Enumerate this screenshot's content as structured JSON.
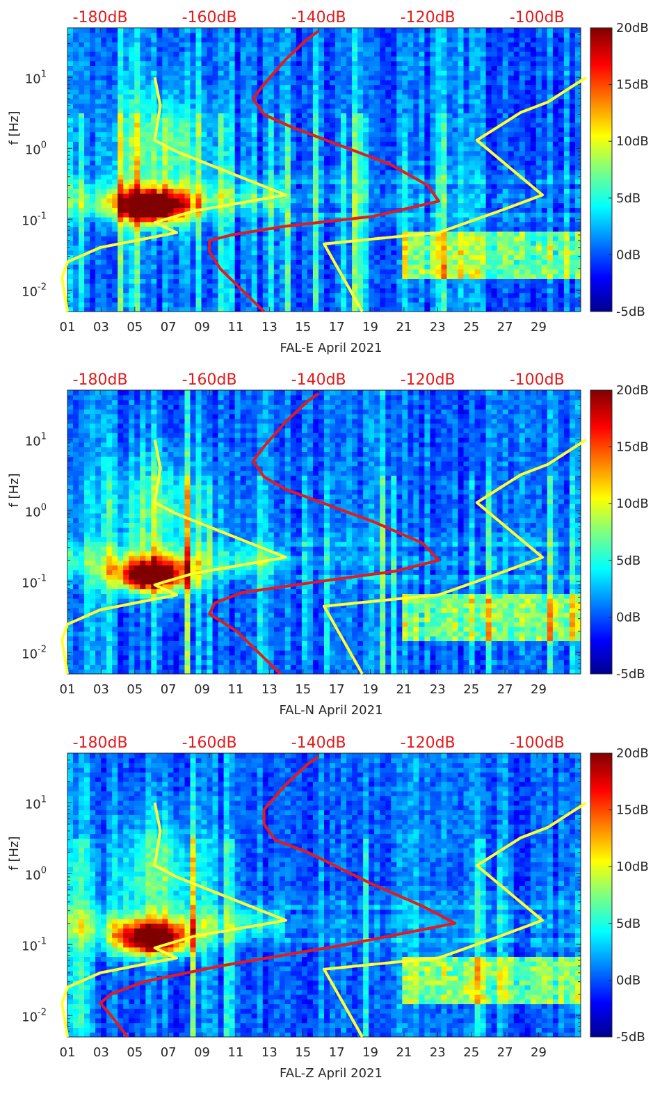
{
  "chart_data": [
    {
      "type": "heatmap",
      "title": "",
      "xlabel": "FAL-E April 2021",
      "ylabel": "f [Hz]",
      "x_ticks": [
        "01",
        "03",
        "05",
        "07",
        "09",
        "11",
        "13",
        "15",
        "17",
        "19",
        "21",
        "23",
        "25",
        "27",
        "29"
      ],
      "x_day_range": [
        1,
        31.5
      ],
      "y_scale": "log",
      "ylim": [
        0.005,
        50
      ],
      "y_ticks": [
        {
          "value": 10,
          "base": "10",
          "exp": "1"
        },
        {
          "value": 1,
          "base": "10",
          "exp": "0"
        },
        {
          "value": 0.1,
          "base": "10",
          "exp": "-1"
        },
        {
          "value": 0.01,
          "base": "10",
          "exp": "-2"
        }
      ],
      "top_axis_ticks": [
        "-180dB",
        "-160dB",
        "-140dB",
        "-120dB",
        "-100dB"
      ],
      "top_axis_range_db": [
        -186,
        -92
      ],
      "colorbar": {
        "ticks": [
          "20dB",
          "15dB",
          "10dB",
          "5dB",
          "0dB",
          "-5dB"
        ],
        "range_db": [
          -5,
          20
        ],
        "colormap": "jet"
      },
      "hot_spot": {
        "day_center": 6,
        "f_center_hz": 0.15,
        "peak_db": 20
      },
      "series": [
        {
          "color": "#ffff33",
          "description": "low noise model",
          "points_db_hz": [
            [
              -186,
              0.005
            ],
            [
              -187,
              0.015
            ],
            [
              -186,
              0.025
            ],
            [
              -180,
              0.04
            ],
            [
              -166,
              0.065
            ],
            [
              -170,
              0.09
            ],
            [
              -163,
              0.13
            ],
            [
              -146,
              0.22
            ],
            [
              -166,
              0.9
            ],
            [
              -170,
              1.3
            ],
            [
              -169,
              4
            ],
            [
              -170,
              10
            ]
          ]
        },
        {
          "color": "#ffff33",
          "description": "high noise model",
          "points_db_hz": [
            [
              -132,
              0.005
            ],
            [
              -139,
              0.045
            ],
            [
              -118,
              0.065
            ],
            [
              -107,
              0.13
            ],
            [
              -99,
              0.22
            ],
            [
              -111,
              1.3
            ],
            [
              -103,
              3.2
            ],
            [
              -98,
              4.5
            ],
            [
              -91,
              10
            ]
          ]
        },
        {
          "color": "#e41a1c",
          "description": "station noise level",
          "points_db_hz": [
            [
              -150,
              0.005
            ],
            [
              -158,
              0.02
            ],
            [
              -160,
              0.035
            ],
            [
              -160,
              0.05
            ],
            [
              -156,
              0.06
            ],
            [
              -146,
              0.08
            ],
            [
              -130,
              0.11
            ],
            [
              -118,
              0.18
            ],
            [
              -120,
              0.3
            ],
            [
              -127,
              0.6
            ],
            [
              -145,
              2
            ],
            [
              -150,
              3
            ],
            [
              -152,
              5
            ],
            [
              -150,
              8
            ],
            [
              -148,
              12
            ],
            [
              -146,
              18
            ],
            [
              -144,
              25
            ],
            [
              -142,
              35
            ],
            [
              -140,
              45
            ]
          ]
        }
      ]
    },
    {
      "type": "heatmap",
      "title": "",
      "xlabel": "FAL-N April 2021",
      "ylabel": "f [Hz]",
      "x_ticks": [
        "01",
        "03",
        "05",
        "07",
        "09",
        "11",
        "13",
        "15",
        "17",
        "19",
        "21",
        "23",
        "25",
        "27",
        "29"
      ],
      "x_day_range": [
        1,
        31.5
      ],
      "y_scale": "log",
      "ylim": [
        0.005,
        50
      ],
      "y_ticks": [
        {
          "value": 10,
          "base": "10",
          "exp": "1"
        },
        {
          "value": 1,
          "base": "10",
          "exp": "0"
        },
        {
          "value": 0.1,
          "base": "10",
          "exp": "-1"
        },
        {
          "value": 0.01,
          "base": "10",
          "exp": "-2"
        }
      ],
      "top_axis_ticks": [
        "-180dB",
        "-160dB",
        "-140dB",
        "-120dB",
        "-100dB"
      ],
      "top_axis_range_db": [
        -186,
        -92
      ],
      "colorbar": {
        "ticks": [
          "20dB",
          "15dB",
          "10dB",
          "5dB",
          "0dB",
          "-5dB"
        ],
        "range_db": [
          -5,
          20
        ],
        "colormap": "jet"
      },
      "hot_spot": {
        "day_center": 6,
        "f_center_hz": 0.12,
        "peak_db": 20
      },
      "series": [
        {
          "color": "#ffff33",
          "description": "low noise model",
          "points_db_hz": [
            [
              -186,
              0.005
            ],
            [
              -187,
              0.015
            ],
            [
              -186,
              0.025
            ],
            [
              -180,
              0.04
            ],
            [
              -166,
              0.065
            ],
            [
              -170,
              0.09
            ],
            [
              -163,
              0.13
            ],
            [
              -146,
              0.22
            ],
            [
              -166,
              0.9
            ],
            [
              -170,
              1.3
            ],
            [
              -169,
              4
            ],
            [
              -170,
              10
            ]
          ]
        },
        {
          "color": "#ffff33",
          "description": "high noise model",
          "points_db_hz": [
            [
              -132,
              0.005
            ],
            [
              -139,
              0.045
            ],
            [
              -118,
              0.065
            ],
            [
              -107,
              0.13
            ],
            [
              -99,
              0.22
            ],
            [
              -111,
              1.3
            ],
            [
              -103,
              3.2
            ],
            [
              -98,
              4.5
            ],
            [
              -91,
              10
            ]
          ]
        },
        {
          "color": "#e41a1c",
          "description": "station noise level",
          "points_db_hz": [
            [
              -147,
              0.005
            ],
            [
              -155,
              0.02
            ],
            [
              -160,
              0.035
            ],
            [
              -159,
              0.05
            ],
            [
              -154,
              0.07
            ],
            [
              -140,
              0.1
            ],
            [
              -126,
              0.14
            ],
            [
              -118,
              0.2
            ],
            [
              -121,
              0.35
            ],
            [
              -130,
              0.7
            ],
            [
              -146,
              2
            ],
            [
              -150,
              3
            ],
            [
              -152,
              5
            ],
            [
              -150,
              8
            ],
            [
              -148,
              12
            ],
            [
              -146,
              18
            ],
            [
              -144,
              25
            ],
            [
              -142,
              35
            ],
            [
              -140,
              45
            ]
          ]
        }
      ]
    },
    {
      "type": "heatmap",
      "title": "",
      "xlabel": "FAL-Z April 2021",
      "ylabel": "f [Hz]",
      "x_ticks": [
        "01",
        "03",
        "05",
        "07",
        "09",
        "11",
        "13",
        "15",
        "17",
        "19",
        "21",
        "23",
        "25",
        "27",
        "29"
      ],
      "x_day_range": [
        1,
        31.5
      ],
      "y_scale": "log",
      "ylim": [
        0.005,
        50
      ],
      "y_ticks": [
        {
          "value": 10,
          "base": "10",
          "exp": "1"
        },
        {
          "value": 1,
          "base": "10",
          "exp": "0"
        },
        {
          "value": 0.1,
          "base": "10",
          "exp": "-1"
        },
        {
          "value": 0.01,
          "base": "10",
          "exp": "-2"
        }
      ],
      "top_axis_ticks": [
        "-180dB",
        "-160dB",
        "-140dB",
        "-120dB",
        "-100dB"
      ],
      "top_axis_range_db": [
        -186,
        -92
      ],
      "colorbar": {
        "ticks": [
          "20dB",
          "15dB",
          "10dB",
          "5dB",
          "0dB",
          "-5dB"
        ],
        "range_db": [
          -5,
          20
        ],
        "colormap": "jet"
      },
      "hot_spot": {
        "day_center": 6,
        "f_center_hz": 0.12,
        "peak_db": 20
      },
      "series": [
        {
          "color": "#ffff33",
          "description": "low noise model",
          "points_db_hz": [
            [
              -186,
              0.005
            ],
            [
              -187,
              0.015
            ],
            [
              -186,
              0.025
            ],
            [
              -180,
              0.04
            ],
            [
              -166,
              0.065
            ],
            [
              -170,
              0.09
            ],
            [
              -163,
              0.13
            ],
            [
              -146,
              0.22
            ],
            [
              -166,
              0.9
            ],
            [
              -170,
              1.3
            ],
            [
              -169,
              4
            ],
            [
              -170,
              10
            ]
          ]
        },
        {
          "color": "#ffff33",
          "description": "high noise model",
          "points_db_hz": [
            [
              -132,
              0.005
            ],
            [
              -139,
              0.045
            ],
            [
              -118,
              0.065
            ],
            [
              -107,
              0.13
            ],
            [
              -99,
              0.22
            ],
            [
              -111,
              1.3
            ],
            [
              -103,
              3.2
            ],
            [
              -98,
              4.5
            ],
            [
              -91,
              10
            ]
          ]
        },
        {
          "color": "#e41a1c",
          "description": "station noise level",
          "points_db_hz": [
            [
              -175,
              0.005
            ],
            [
              -178,
              0.01
            ],
            [
              -180,
              0.015
            ],
            [
              -178,
              0.02
            ],
            [
              -172,
              0.03
            ],
            [
              -158,
              0.05
            ],
            [
              -135,
              0.1
            ],
            [
              -115,
              0.2
            ],
            [
              -121,
              0.35
            ],
            [
              -130,
              0.7
            ],
            [
              -142,
              2
            ],
            [
              -148,
              3
            ],
            [
              -150,
              5
            ],
            [
              -150,
              8
            ],
            [
              -148,
              12
            ],
            [
              -146,
              18
            ],
            [
              -144,
              25
            ],
            [
              -142,
              35
            ],
            [
              -140,
              45
            ]
          ]
        }
      ]
    }
  ]
}
